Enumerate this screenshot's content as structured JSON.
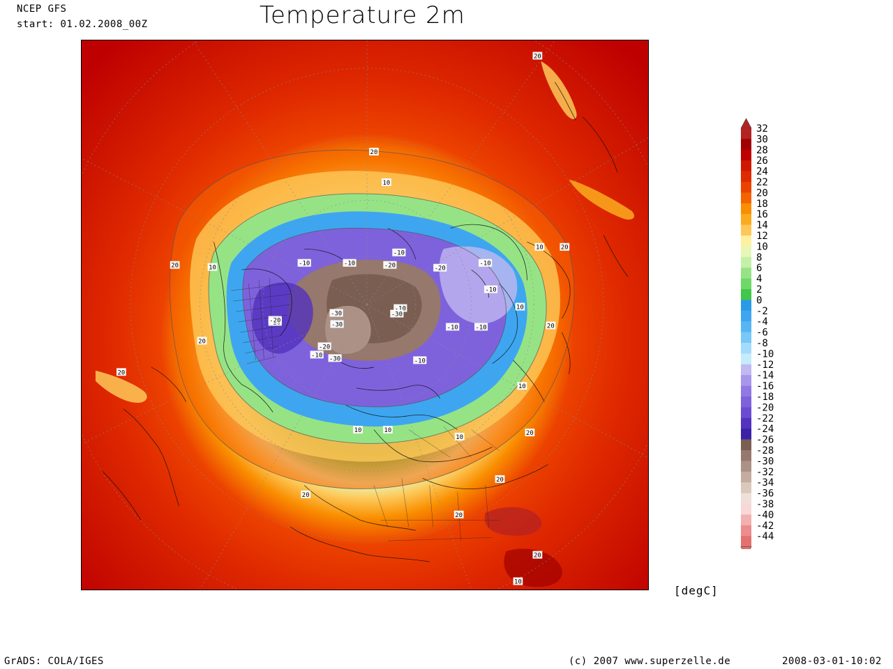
{
  "header": {
    "model": "NCEP GFS",
    "start": "start: 01.02.2008_00Z",
    "title": "Temperature 2m"
  },
  "map": {
    "projection": "north polar stereographic",
    "field": "2m temperature",
    "contour_labels": [
      "20",
      "20",
      "20",
      "20",
      "20",
      "20",
      "20",
      "20",
      "20",
      "20",
      "20",
      "20",
      "10",
      "10",
      "10",
      "10",
      "10",
      "10",
      "10",
      "10",
      "10",
      "-10",
      "-10",
      "-10",
      "-10",
      "-10",
      "-10",
      "-10",
      "-10",
      "-10",
      "-10",
      "-20",
      "-20",
      "-20",
      "-20",
      "-20",
      "-30",
      "-30",
      "-30",
      "-30"
    ]
  },
  "colorbar": {
    "levels": [
      "32",
      "30",
      "28",
      "26",
      "24",
      "22",
      "20",
      "18",
      "16",
      "14",
      "12",
      "10",
      "8",
      "6",
      "4",
      "2",
      "0",
      "-2",
      "-4",
      "-6",
      "-8",
      "-10",
      "-12",
      "-14",
      "-16",
      "-18",
      "-20",
      "-22",
      "-24",
      "-26",
      "-28",
      "-30",
      "-32",
      "-34",
      "-36",
      "-38",
      "-40",
      "-42",
      "-44"
    ],
    "colors": [
      "#b42222",
      "#a00000",
      "#be0000",
      "#d01800",
      "#e02a00",
      "#ec4200",
      "#f56200",
      "#f98e00",
      "#fbab1e",
      "#fdc858",
      "#fdf0a0",
      "#e6f7b8",
      "#c4f0a8",
      "#96e386",
      "#6ed868",
      "#42c64c",
      "#2a9ae8",
      "#3ea6f0",
      "#56b6f4",
      "#78c8f8",
      "#a2dcfc",
      "#c6ecfc",
      "#c0b8f0",
      "#a896ea",
      "#9278e4",
      "#7e62dc",
      "#6a4cd2",
      "#5232be",
      "#3a22a8",
      "#7a5e52",
      "#96786c",
      "#ac9286",
      "#c4aca0",
      "#dac8bc",
      "#eee0d8",
      "#f8d8d8",
      "#f4b0b0",
      "#ec8c8c",
      "#e47070"
    ],
    "units": "[degC]"
  },
  "footer": {
    "left": "GrADS: COLA/IGES",
    "copyright": "(c) 2007 www.superzelle.de",
    "timestamp": "2008-03-01-10:02"
  }
}
